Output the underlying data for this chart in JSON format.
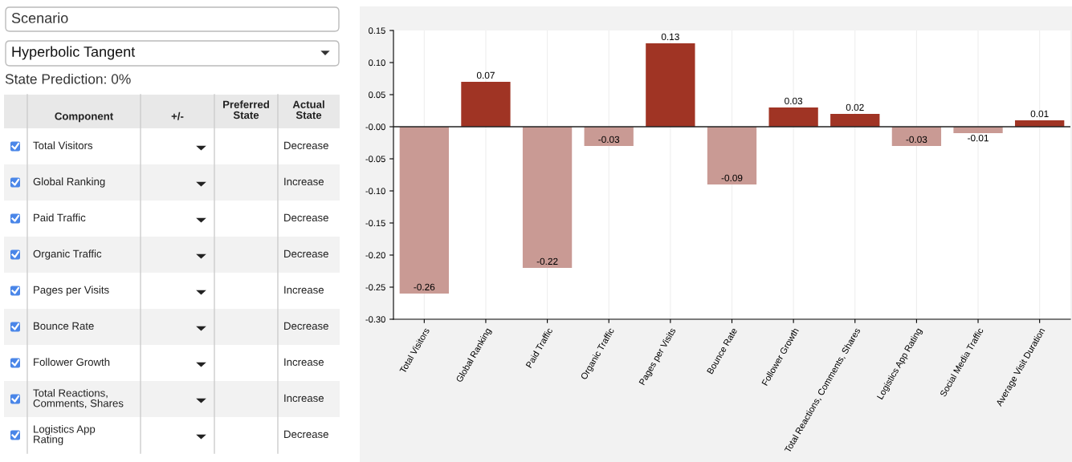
{
  "chart_data": [
    {
      "type": "other",
      "title": "Scenario",
      "subtitle": "Hyperbolic Tangent",
      "categories": [
        "Total Visitors",
        "Global Ranking",
        "Paid Traffic",
        "Organic Traffic",
        "Pages per Visits",
        "Bounce Rate",
        "Follower Growth",
        "Total Reactions, Comments, Shares",
        "Logistics App Rating"
      ],
      "annotations": [
        "State Prediction: 0%",
        "Component",
        "+/-",
        "Preferred State",
        "Actual State",
        "Decrease",
        "Increase",
        "Decrease",
        "Decrease",
        "Increase",
        "Decrease",
        "Increase",
        "Increase",
        "Decrease"
      ]
    },
    {
      "type": "bar",
      "categories": [
        "Total Visitors",
        "Global Ranking",
        "Paid Traffic",
        "Organic Traffic",
        "Pages per Visits",
        "Bounce Rate",
        "Follower Growth",
        "Total Reactions, Comments, Shares",
        "Logistics App Rating",
        "Social Media Traffic",
        "Average Visit Duration"
      ],
      "values": [
        -0.26,
        0.07,
        -0.22,
        -0.03,
        0.13,
        -0.09,
        0.03,
        0.02,
        -0.03,
        -0.01,
        0.01
      ],
      "colors": [
        "#c99a94",
        "#a03424",
        "#c99a94",
        "#c99a94",
        "#a03424",
        "#c99a94",
        "#a03424",
        "#a03424",
        "#c99a94",
        "#c99a94",
        "#a03424"
      ],
      "data_labels": true,
      "ylim": [
        -0.3,
        0.15
      ],
      "yticks": [
        {
          "value": -0.3,
          "label": "-0.30"
        },
        {
          "value": -0.25,
          "label": "-0.25"
        },
        {
          "value": -0.2,
          "label": "-0.20"
        },
        {
          "value": -0.15,
          "label": "-0.15"
        },
        {
          "value": -0.1,
          "label": "-0.10"
        },
        {
          "value": -0.05,
          "label": "-0.05"
        },
        {
          "value": 0,
          "label": "-0.00"
        },
        {
          "value": 0.05,
          "label": "0.05"
        },
        {
          "value": 0.1,
          "label": "0.10"
        },
        {
          "value": 0.15,
          "label": "0.15"
        }
      ],
      "ref_lines": [
        {
          "axis": "y",
          "value": 0,
          "color": "#222222"
        }
      ],
      "grid": "x",
      "legend": false
    }
  ]
}
